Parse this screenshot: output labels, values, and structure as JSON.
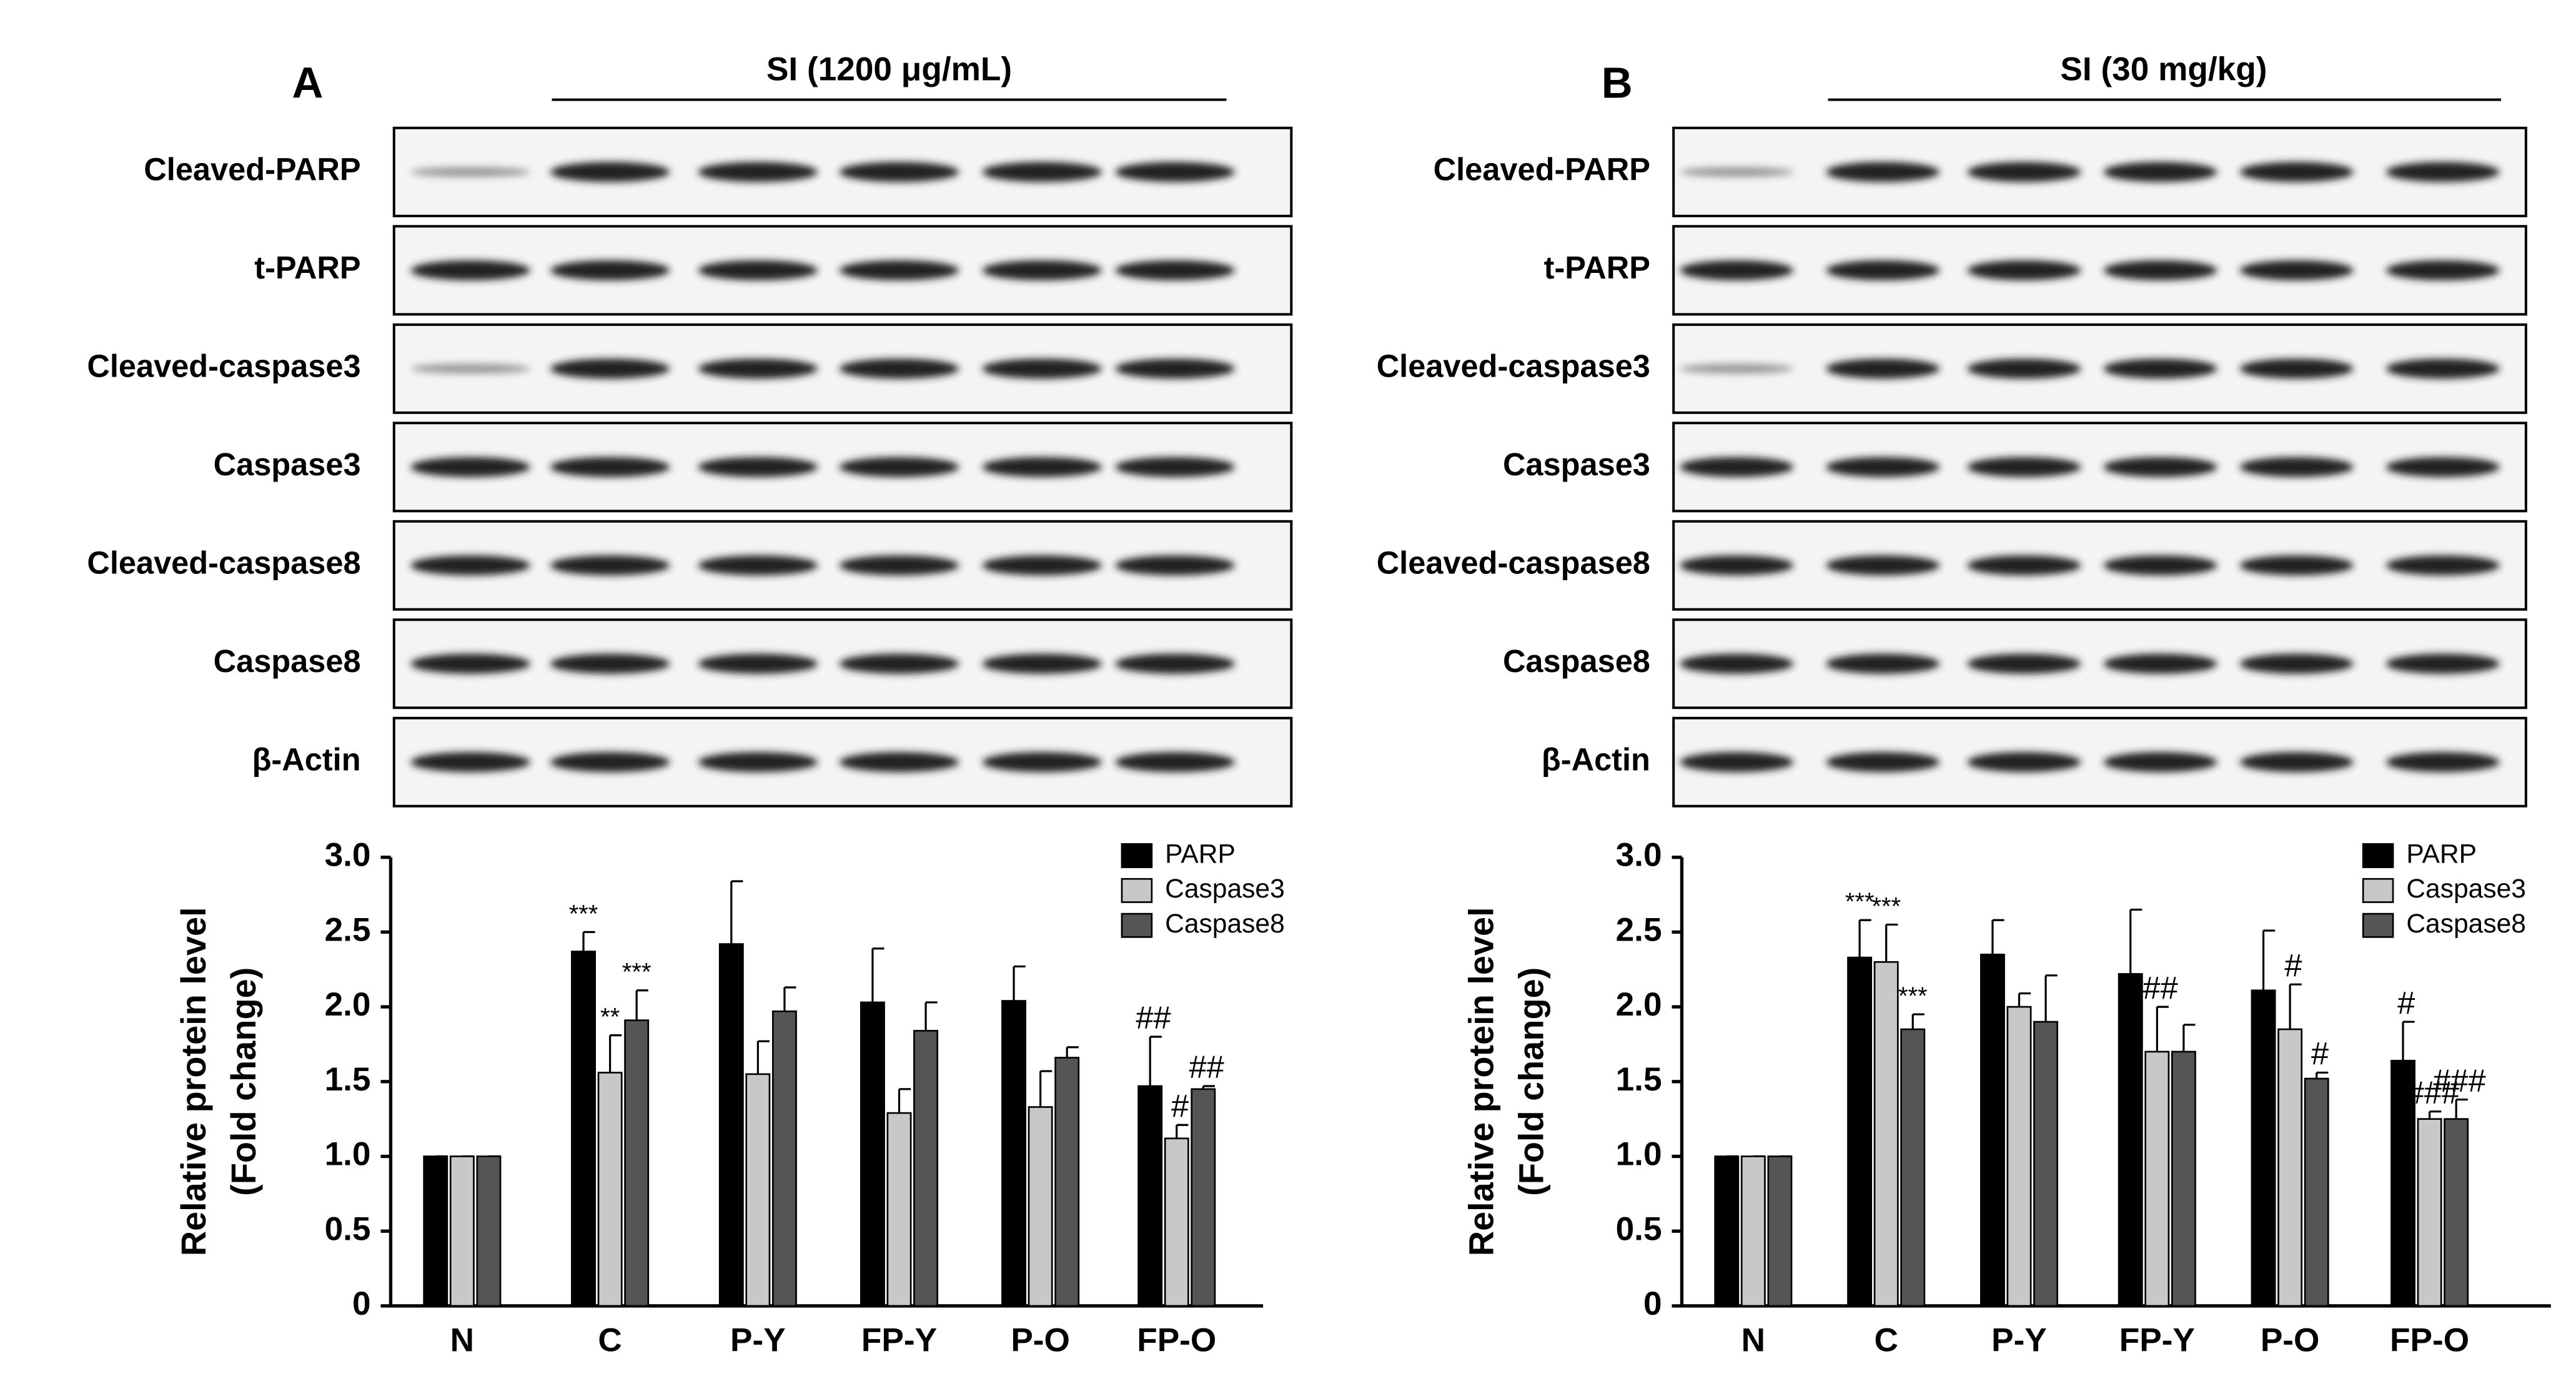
{
  "chart_data": [
    {
      "type": "bar",
      "panel": "A",
      "header": "SI (1200 μg/mL)",
      "blots": [
        "Cleaved-PARP",
        "t-PARP",
        "Cleaved-caspase3",
        "Caspase3",
        "Cleaved-caspase8",
        "Caspase8",
        "β-Actin"
      ],
      "ylabel": [
        "Relative protein level",
        "(Fold change)"
      ],
      "categories": [
        "N",
        "C",
        "P-Y",
        "FP-Y",
        "P-O",
        "FP-O"
      ],
      "series": [
        {
          "name": "PARP",
          "color": "#000000",
          "values": [
            1,
            2.37,
            2.42,
            2.03,
            2.04,
            1.47
          ],
          "errors": [
            0,
            0.13,
            0.42,
            0.36,
            0.23,
            0.33
          ],
          "annotations": [
            null,
            "***",
            null,
            null,
            null,
            "##"
          ]
        },
        {
          "name": "Caspase3",
          "color": "#c8c8c8",
          "values": [
            1,
            1.56,
            1.55,
            1.29,
            1.33,
            1.12
          ],
          "errors": [
            0,
            0.25,
            0.22,
            0.16,
            0.24,
            0.09
          ],
          "annotations": [
            null,
            "**",
            null,
            null,
            null,
            "#"
          ]
        },
        {
          "name": "Caspase8",
          "color": "#555555",
          "values": [
            1,
            1.91,
            1.97,
            1.84,
            1.66,
            1.45
          ],
          "errors": [
            0,
            0.2,
            0.16,
            0.19,
            0.07,
            0.02
          ],
          "annotations": [
            null,
            "***",
            null,
            null,
            null,
            "##"
          ]
        }
      ],
      "ylim": [
        0,
        3
      ],
      "yticks": [
        0,
        0.5,
        {
          "value": 1,
          "label": "1.0"
        },
        1.5,
        {
          "value": 2,
          "label": "2.0"
        },
        2.5,
        {
          "value": 3,
          "label": "3.0"
        }
      ],
      "legend": "upper right"
    },
    {
      "type": "bar",
      "panel": "B",
      "header": "SI (30 mg/kg)",
      "blots": [
        "Cleaved-PARP",
        "t-PARP",
        "Cleaved-caspase3",
        "Caspase3",
        "Cleaved-caspase8",
        "Caspase8",
        "β-Actin"
      ],
      "ylabel": [
        "Relative protein level",
        "(Fold change)"
      ],
      "categories": [
        "N",
        "C",
        "P-Y",
        "FP-Y",
        "P-O",
        "FP-O"
      ],
      "series": [
        {
          "name": "PARP",
          "color": "#000000",
          "values": [
            1,
            2.33,
            2.35,
            2.22,
            2.11,
            1.64
          ],
          "errors": [
            0,
            0.25,
            0.23,
            0.43,
            0.4,
            0.26
          ],
          "annotations": [
            null,
            "***",
            null,
            null,
            null,
            "#"
          ]
        },
        {
          "name": "Caspase3",
          "color": "#c8c8c8",
          "values": [
            1,
            2.3,
            2.0,
            1.7,
            1.85,
            1.25
          ],
          "errors": [
            0,
            0.25,
            0.09,
            0.3,
            0.3,
            0.05
          ],
          "annotations": [
            null,
            "***",
            null,
            "##",
            "#",
            "###"
          ]
        },
        {
          "name": "Caspase8",
          "color": "#555555",
          "values": [
            1,
            1.85,
            1.9,
            1.7,
            1.52,
            1.25
          ],
          "errors": [
            0,
            0.1,
            0.31,
            0.18,
            0.04,
            0.13
          ],
          "annotations": [
            null,
            "***",
            null,
            null,
            "#",
            "###"
          ]
        }
      ],
      "ylim": [
        0,
        3
      ],
      "yticks": [
        0,
        0.5,
        {
          "value": 1,
          "label": "1.0"
        },
        1.5,
        {
          "value": 2,
          "label": "2.0"
        },
        2.5,
        {
          "value": 3,
          "label": "3.0"
        }
      ],
      "legend": "upper right"
    }
  ]
}
